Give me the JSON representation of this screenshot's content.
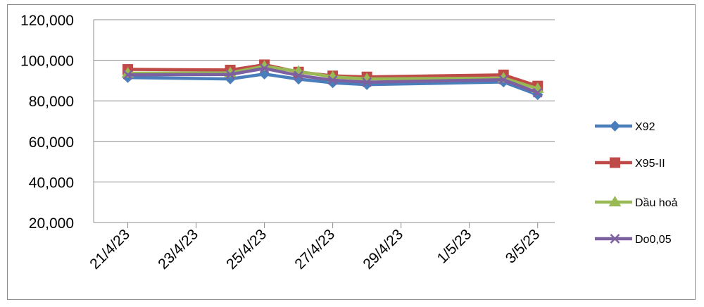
{
  "chart_data": {
    "type": "line",
    "title": "",
    "xlabel": "",
    "ylabel": "",
    "x_dates": [
      "21/4/23",
      "24/4/23",
      "25/4/23",
      "26/4/23",
      "27/4/23",
      "28/4/23",
      "2/5/23",
      "3/5/23"
    ],
    "x_tick_labels": [
      "21/4/23",
      "23/4/23",
      "25/4/23",
      "27/4/23",
      "29/4/23",
      "1/5/23",
      "3/5/23"
    ],
    "x_range": [
      "20/4/23",
      "3/5/23"
    ],
    "y_tick_labels": [
      "20,000",
      "40,000",
      "60,000",
      "80,000",
      "100,000",
      "120,000"
    ],
    "ylim": [
      20000,
      120000
    ],
    "grid": "horizontal",
    "legend_position": "right",
    "series": [
      {
        "name": "X92",
        "color": "#4a7ebb",
        "marker": "diamond",
        "values": [
          91500,
          90800,
          93200,
          90700,
          88900,
          88000,
          89300,
          83000
        ]
      },
      {
        "name": "X95-II",
        "color": "#be4b48",
        "marker": "square",
        "values": [
          95500,
          95200,
          97800,
          94200,
          92300,
          91800,
          92800,
          87300
        ]
      },
      {
        "name": "Dầu hoả",
        "color": "#98b954",
        "marker": "triangle",
        "values": [
          93600,
          93800,
          97000,
          94500,
          91800,
          90800,
          91200,
          86000
        ]
      },
      {
        "name": "Do0,05",
        "color": "#7d60a0",
        "marker": "x",
        "values": [
          92800,
          93000,
          96000,
          92500,
          90200,
          89200,
          90400,
          84000
        ]
      }
    ]
  }
}
